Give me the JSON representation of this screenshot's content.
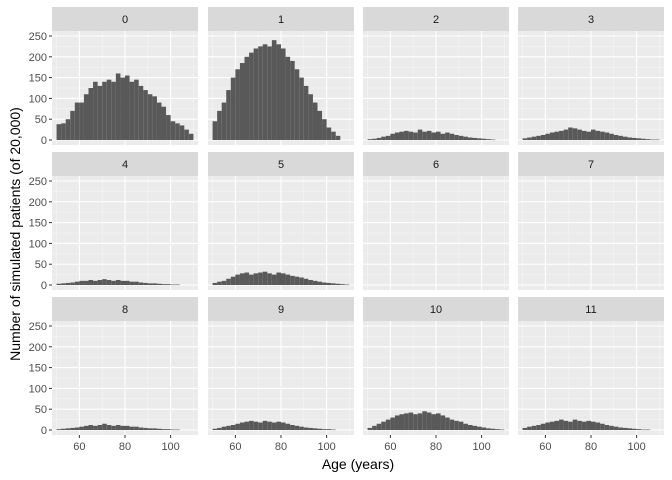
{
  "chart_data": {
    "type": "bar",
    "facet": "wrap",
    "xlabel": "Age (years)",
    "ylabel": "Number of simulated patients (of 20,000)",
    "xlim": [
      48,
      112
    ],
    "ylim": [
      -12,
      262
    ],
    "x_ticks": [
      60,
      80,
      100
    ],
    "y_ticks": [
      0,
      50,
      100,
      150,
      200,
      250
    ],
    "bin_start": 50,
    "bin_width": 2,
    "bar_color": "#595959",
    "panel_background": "#ebebeb",
    "strip_background": "#d9d9d9",
    "panels": [
      {
        "label": "0",
        "values": [
          38,
          40,
          50,
          70,
          90,
          90,
          110,
          125,
          140,
          130,
          140,
          145,
          140,
          160,
          150,
          155,
          140,
          145,
          130,
          120,
          110,
          105,
          90,
          80,
          60,
          45,
          40,
          35,
          25,
          15
        ]
      },
      {
        "label": "1",
        "values": [
          45,
          70,
          90,
          120,
          150,
          170,
          185,
          200,
          210,
          220,
          225,
          230,
          225,
          240,
          230,
          220,
          200,
          190,
          170,
          150,
          130,
          110,
          90,
          70,
          50,
          30,
          20,
          10,
          0,
          0
        ]
      },
      {
        "label": "2",
        "values": [
          2,
          3,
          5,
          8,
          10,
          15,
          18,
          20,
          22,
          20,
          18,
          25,
          20,
          22,
          18,
          20,
          15,
          18,
          15,
          12,
          10,
          8,
          6,
          5,
          4,
          3,
          2,
          1,
          0,
          0
        ]
      },
      {
        "label": "3",
        "values": [
          4,
          6,
          8,
          10,
          12,
          15,
          18,
          20,
          22,
          25,
          30,
          28,
          25,
          22,
          20,
          25,
          22,
          20,
          18,
          15,
          12,
          10,
          8,
          6,
          5,
          4,
          3,
          2,
          1,
          1
        ]
      },
      {
        "label": "4",
        "values": [
          3,
          4,
          5,
          6,
          8,
          10,
          10,
          12,
          10,
          12,
          14,
          12,
          10,
          12,
          10,
          10,
          8,
          8,
          6,
          5,
          4,
          4,
          3,
          2,
          2,
          1,
          1,
          0,
          0,
          0
        ]
      },
      {
        "label": "5",
        "values": [
          5,
          8,
          10,
          15,
          20,
          25,
          28,
          30,
          25,
          28,
          30,
          32,
          28,
          25,
          30,
          28,
          25,
          22,
          20,
          18,
          15,
          12,
          10,
          8,
          6,
          5,
          4,
          3,
          2,
          1
        ]
      },
      {
        "label": "6",
        "values": [
          0,
          0,
          0,
          0,
          0,
          0,
          0,
          0,
          0,
          0,
          0,
          0,
          0,
          0,
          0,
          0,
          0,
          0,
          0,
          0,
          0,
          0,
          0,
          0,
          0,
          0,
          0,
          0,
          0,
          0
        ]
      },
      {
        "label": "7",
        "values": [
          0,
          0,
          0,
          0,
          0,
          0,
          0,
          0,
          0,
          0,
          0,
          0,
          0,
          0,
          0,
          0,
          0,
          0,
          0,
          0,
          0,
          0,
          0,
          0,
          0,
          0,
          0,
          0,
          0,
          0
        ]
      },
      {
        "label": "8",
        "values": [
          2,
          3,
          4,
          5,
          6,
          8,
          10,
          12,
          10,
          12,
          15,
          12,
          10,
          12,
          10,
          10,
          8,
          8,
          6,
          5,
          4,
          4,
          3,
          2,
          2,
          1,
          1,
          0,
          0,
          0
        ]
      },
      {
        "label": "9",
        "values": [
          3,
          5,
          8,
          10,
          12,
          15,
          18,
          20,
          22,
          20,
          18,
          22,
          20,
          18,
          20,
          18,
          15,
          12,
          10,
          8,
          6,
          5,
          4,
          3,
          2,
          2,
          1,
          0,
          0,
          0
        ]
      },
      {
        "label": "10",
        "values": [
          5,
          10,
          15,
          20,
          25,
          30,
          35,
          38,
          40,
          42,
          38,
          40,
          45,
          42,
          38,
          40,
          35,
          30,
          25,
          22,
          20,
          15,
          12,
          10,
          8,
          6,
          4,
          3,
          2,
          1
        ]
      },
      {
        "label": "11",
        "values": [
          5,
          8,
          10,
          12,
          15,
          18,
          20,
          22,
          25,
          22,
          20,
          25,
          22,
          20,
          22,
          20,
          18,
          15,
          12,
          10,
          8,
          6,
          5,
          4,
          3,
          2,
          1,
          1,
          0,
          0
        ]
      }
    ]
  }
}
